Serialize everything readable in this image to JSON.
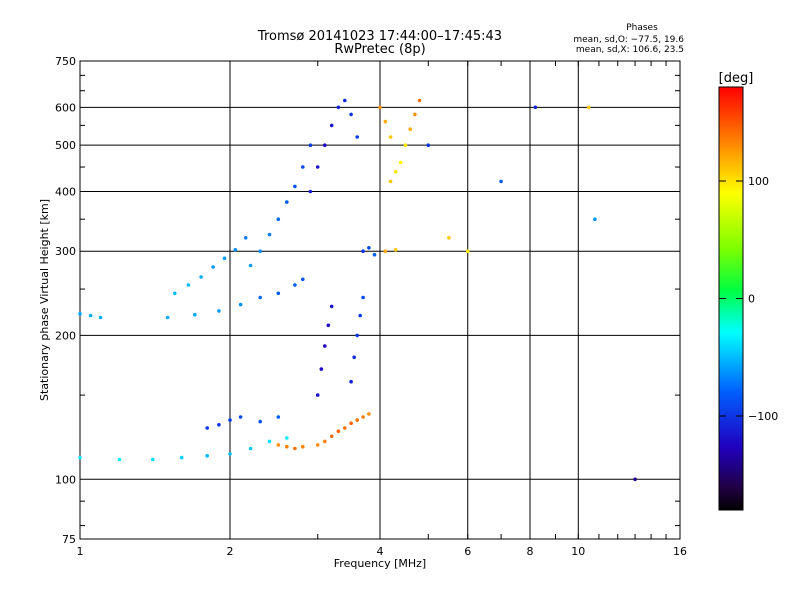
{
  "chart_data": {
    "type": "scatter",
    "title": "Tromsø 20141023 17:44:00–17:45:43",
    "subtitle": "RwPretec (8p)",
    "xlabel": "Frequency [MHz]",
    "ylabel": "Stationary phase Virtual Height [km]",
    "x_scale": "log",
    "y_scale": "log",
    "xlim": [
      1,
      16
    ],
    "ylim": [
      75,
      750
    ],
    "x_ticks": [
      1,
      2,
      4,
      6,
      8,
      10,
      16
    ],
    "x_tick_labels": [
      "1",
      "2",
      "4",
      "6",
      "8",
      "10",
      "16"
    ],
    "y_ticks": [
      75,
      100,
      200,
      300,
      400,
      500,
      600,
      750
    ],
    "y_tick_labels": [
      "75",
      "100",
      "200",
      "300",
      "400",
      "500",
      "600",
      "750"
    ],
    "grid": true,
    "phases_note": {
      "heading": "Phases",
      "line1": "mean, sd,O: −77.5, 19.6",
      "line2": "mean, sd,X: 106.6, 23.5"
    },
    "colorbar": {
      "label": "[deg]",
      "range": [
        -180,
        180
      ],
      "ticks": [
        100,
        0,
        -100
      ],
      "tick_labels": [
        "100",
        "0",
        "−100"
      ]
    },
    "point_groups": [
      {
        "x": [
          1.0,
          1.2,
          1.4,
          1.6,
          1.8,
          2.0,
          2.2,
          2.4,
          2.6
        ],
        "y": [
          111,
          110,
          110,
          111,
          112,
          113,
          116,
          120,
          122
        ],
        "phase": [
          -35,
          -35,
          -40,
          -45,
          -50,
          -50,
          -45,
          -40,
          -35
        ]
      },
      {
        "x": [
          1.0,
          1.05,
          1.1
        ],
        "y": [
          222,
          220,
          218
        ],
        "phase": [
          -55,
          -55,
          -55
        ]
      },
      {
        "x": [
          1.5,
          1.7,
          1.9,
          2.1,
          2.3,
          2.5,
          2.7,
          2.8
        ],
        "y": [
          218,
          221,
          225,
          232,
          240,
          245,
          255,
          262
        ],
        "phase": [
          -55,
          -55,
          -60,
          -65,
          -75,
          -80,
          -80,
          -85
        ]
      },
      {
        "x": [
          1.55,
          1.65,
          1.75,
          1.85,
          1.95,
          2.05,
          2.15
        ],
        "y": [
          245,
          255,
          265,
          278,
          290,
          302,
          320
        ],
        "phase": [
          -50,
          -50,
          -55,
          -60,
          -60,
          -65,
          -70
        ]
      },
      {
        "x": [
          2.2,
          2.3,
          2.4,
          2.5,
          2.6,
          2.7,
          2.8,
          2.9
        ],
        "y": [
          280,
          300,
          325,
          350,
          380,
          410,
          450,
          500
        ],
        "phase": [
          -60,
          -65,
          -70,
          -75,
          -80,
          -85,
          -90,
          -95
        ]
      },
      {
        "x": [
          2.5,
          2.6,
          2.7,
          2.8
        ],
        "y": [
          118,
          117,
          116,
          117
        ],
        "phase": [
          130,
          135,
          140,
          135
        ]
      },
      {
        "x": [
          3.0,
          3.1,
          3.2,
          3.3,
          3.4,
          3.5,
          3.6,
          3.7,
          3.8
        ],
        "y": [
          118,
          120,
          123,
          126,
          128,
          131,
          133,
          135,
          137
        ],
        "phase": [
          130,
          135,
          140,
          145,
          140,
          145,
          140,
          135,
          130
        ]
      },
      {
        "x": [
          1.8,
          1.9,
          2.0,
          2.1,
          2.3,
          2.5
        ],
        "y": [
          128,
          130,
          133,
          135,
          132,
          135
        ],
        "phase": [
          -100,
          -100,
          -95,
          -90,
          -85,
          -80
        ]
      },
      {
        "x": [
          2.9,
          3.0,
          3.1,
          3.2,
          3.3,
          3.4,
          3.5,
          3.6
        ],
        "y": [
          400,
          450,
          500,
          550,
          600,
          620,
          580,
          520
        ],
        "phase": [
          -110,
          -115,
          -120,
          -115,
          -110,
          -105,
          -100,
          -95
        ]
      },
      {
        "x": [
          3.0,
          3.05,
          3.1,
          3.15,
          3.2
        ],
        "y": [
          150,
          170,
          190,
          210,
          230
        ],
        "phase": [
          -115,
          -120,
          -125,
          -120,
          -115
        ]
      },
      {
        "x": [
          3.5,
          3.55,
          3.6,
          3.65,
          3.7
        ],
        "y": [
          160,
          180,
          200,
          220,
          240
        ],
        "phase": [
          -110,
          -105,
          -100,
          -95,
          -90
        ]
      },
      {
        "x": [
          3.7,
          3.8,
          3.9,
          4.1,
          4.3
        ],
        "y": [
          300,
          305,
          295,
          300,
          302
        ],
        "phase": [
          -100,
          -90,
          -80,
          120,
          110
        ]
      },
      {
        "x": [
          4.2,
          4.3,
          4.4,
          4.5,
          4.6,
          4.7,
          4.8
        ],
        "y": [
          420,
          440,
          460,
          500,
          540,
          580,
          620
        ],
        "phase": [
          110,
          100,
          90,
          100,
          120,
          130,
          140
        ]
      },
      {
        "x": [
          4.0,
          4.1,
          4.2,
          5.0,
          5.5,
          6.0,
          7.0,
          8.2,
          10.5,
          10.8,
          13.0
        ],
        "y": [
          600,
          560,
          520,
          500,
          320,
          300,
          420,
          600,
          600,
          350,
          100
        ],
        "phase": [
          130,
          120,
          110,
          -100,
          110,
          100,
          -80,
          -110,
          110,
          -60,
          -140
        ]
      }
    ]
  }
}
